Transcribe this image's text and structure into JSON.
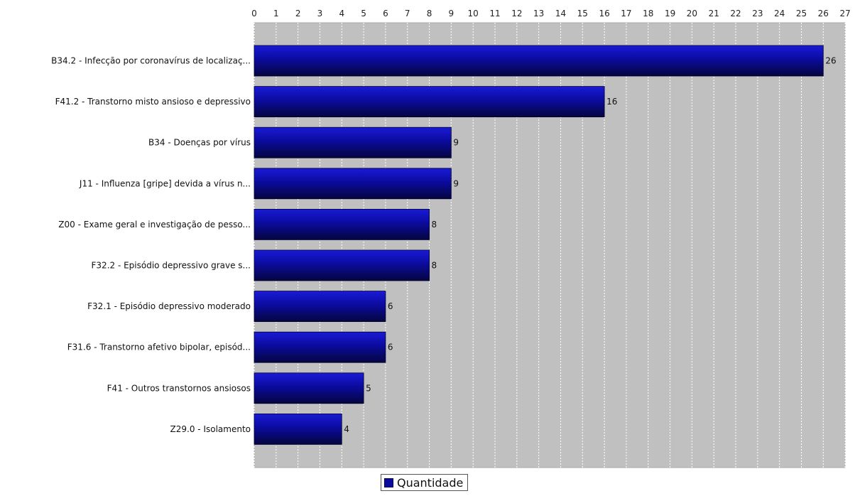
{
  "chart_data": {
    "type": "bar",
    "orientation": "horizontal",
    "title": "",
    "xlabel": "",
    "ylabel": "",
    "xlim": [
      0,
      27
    ],
    "ticks": [
      0,
      1,
      2,
      3,
      4,
      5,
      6,
      7,
      8,
      9,
      10,
      11,
      12,
      13,
      14,
      15,
      16,
      17,
      18,
      19,
      20,
      21,
      22,
      23,
      24,
      25,
      26,
      27
    ],
    "grid": true,
    "legend_position": "bottom",
    "bar_color": "#0b0b9e",
    "plot_background": "#c0c0c0",
    "categories": [
      "B34.2 - Infecção por coronavírus de localizaç...",
      "F41.2 - Transtorno misto ansioso e depressivo",
      "B34 - Doenças por vírus",
      "J11 - Influenza [gripe] devida a vírus n...",
      "Z00 - Exame geral e investigação de pesso...",
      "F32.2 - Episódio depressivo grave s...",
      "F32.1 - Episódio depressivo moderado",
      "F31.6 - Transtorno afetivo bipolar, episód...",
      "F41 - Outros transtornos ansiosos",
      "Z29.0 - Isolamento"
    ],
    "series": [
      {
        "name": "Quantidade",
        "values": [
          26,
          16,
          9,
          9,
          8,
          8,
          6,
          6,
          5,
          4
        ]
      }
    ]
  }
}
